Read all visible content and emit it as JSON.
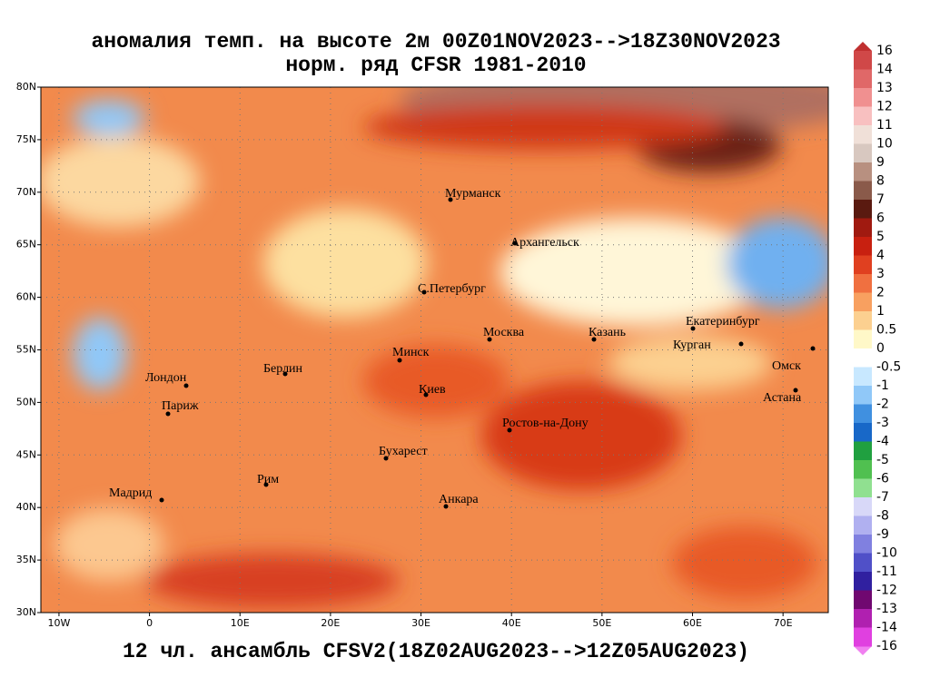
{
  "title": {
    "line1": "аномалия темп. на высоте 2м 00Z01NOV2023-->18Z30NOV2023",
    "line2": "норм. ряд CFSR 1981-2010"
  },
  "footer": "12 чл. ансамбль CFSV2(18Z02AUG2023-->12Z05AUG2023)",
  "map": {
    "lonlim": [
      -12,
      75
    ],
    "latlim": [
      30,
      80
    ],
    "lon_ticks": [
      {
        "value": -10,
        "label": "10W"
      },
      0,
      {
        "value": 10,
        "label": "10E"
      },
      {
        "value": 20,
        "label": "20E"
      },
      {
        "value": 30,
        "label": "30E"
      },
      {
        "value": 40,
        "label": "40E"
      },
      {
        "value": 50,
        "label": "50E"
      },
      {
        "value": 60,
        "label": "60E"
      },
      {
        "value": 70,
        "label": "70E"
      }
    ],
    "lat_ticks": [
      {
        "value": 30,
        "label": "30N"
      },
      {
        "value": 35,
        "label": "35N"
      },
      {
        "value": 40,
        "label": "40N"
      },
      {
        "value": 45,
        "label": "45N"
      },
      {
        "value": 50,
        "label": "50N"
      },
      {
        "value": 55,
        "label": "55N"
      },
      {
        "value": 60,
        "label": "60N"
      },
      {
        "value": 65,
        "label": "65N"
      },
      {
        "value": 70,
        "label": "70N"
      },
      {
        "value": 75,
        "label": "75N"
      },
      {
        "value": 80,
        "label": "80N"
      }
    ],
    "grid": true,
    "cities": [
      "Мурманск",
      "Архангельск",
      "С.Петербург",
      "Москва",
      "Казань",
      "Екатеринбург",
      "Курган",
      "Омск",
      "Астана",
      "Минск",
      "Берлин",
      "Лондон",
      "Париж",
      "Киев",
      "Ростов-на-Дону",
      "Бухарест",
      "Рим",
      "Мадрид",
      "Анкара"
    ]
  },
  "colorbar": {
    "levels": [
      16,
      14,
      13,
      12,
      11,
      10,
      9,
      8,
      7,
      6,
      5,
      4,
      3,
      2,
      1,
      0.5,
      0,
      -0.5,
      -1,
      -2,
      -3,
      -4,
      -5,
      -6,
      -7,
      -8,
      -9,
      -10,
      -11,
      -12,
      -13,
      -14,
      -16
    ],
    "colors": [
      "#d04848",
      "#e06868",
      "#f09090",
      "#f8c0c0",
      "#f0e0d8",
      "#d8c8c0",
      "#b89080",
      "#8a5a4a",
      "#5a1a10",
      "#a01a10",
      "#c82010",
      "#e04020",
      "#f07040",
      "#f8a060",
      "#fcd090",
      "#fff8c8",
      "#ffffff",
      "#c8e8ff",
      "#90c8f8",
      "#4090e0",
      "#1868c8",
      "#20a040",
      "#50c050",
      "#90e090",
      "#d8d8f8",
      "#b0b0f0",
      "#8080e0",
      "#5050c8",
      "#3020a0",
      "#700870",
      "#b020b0",
      "#e040e0"
    ]
  }
}
